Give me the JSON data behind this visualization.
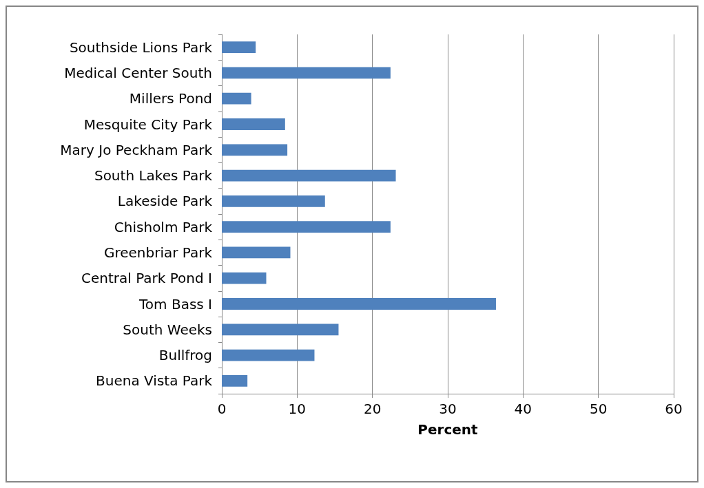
{
  "chart_data": {
    "type": "bar",
    "orientation": "horizontal",
    "xlabel": "Percent",
    "categories": [
      "Southside Lions Park",
      "Medical Center South",
      "Millers Pond",
      "Mesquite City Park",
      "Mary Jo Peckham Park",
      "South Lakes Park",
      "Lakeside Park",
      "Chisholm Park",
      "Greenbriar Park",
      "Central Park Pond I",
      "Tom Bass I",
      "South Weeks",
      "Bullfrog",
      "Buena Vista Park"
    ],
    "values": [
      4.5,
      22.4,
      3.9,
      8.4,
      8.7,
      23.1,
      13.7,
      22.4,
      9.1,
      5.9,
      36.4,
      15.5,
      12.3,
      3.4
    ],
    "color": "#4f81bd",
    "xlim": [
      0,
      60
    ],
    "xticks": [
      0,
      10,
      20,
      30,
      40,
      50,
      60
    ],
    "grid": "x"
  }
}
